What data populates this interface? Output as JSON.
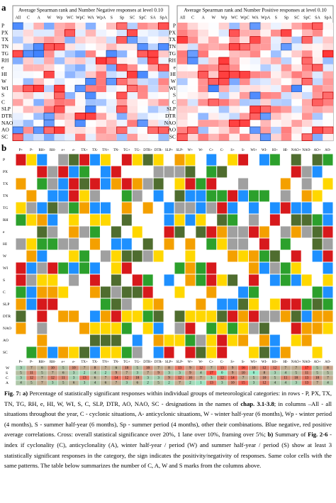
{
  "panel_a": {
    "letter": "a",
    "left_title": "Average Spearman rank and Number Negative responses at level 0.10",
    "right_title": "Average Spearman rank and Number Positive responses at level 0.10",
    "columns": [
      "All",
      "C",
      "A",
      "W",
      "Wp",
      "WC",
      "WpC",
      "WA",
      "WpA",
      "S",
      "Sp",
      "SC",
      "SpC",
      "SA",
      "SpA"
    ],
    "rows": [
      "P",
      "PX",
      "TX",
      "TN",
      "TG",
      "RH",
      "e",
      "HI",
      "W",
      "WI",
      "S",
      "C",
      "SLP",
      "DTR",
      "NAO",
      "AO",
      "SC"
    ]
  },
  "panel_b": {
    "letter": "b",
    "columns": [
      "P+",
      "P-",
      "RH+",
      "RH-",
      "e+",
      "e-",
      "TX+",
      "TX-",
      "TN+",
      "TN-",
      "TG+",
      "TG-",
      "DTR+",
      "DTR-",
      "SLP+",
      "SLP-",
      "W+",
      "W-",
      "C+",
      "C-",
      "S+",
      "S-",
      "WI+",
      "WI-",
      "HI+",
      "HI-",
      "NAO+",
      "NAO-",
      "AO+",
      "AO-"
    ],
    "rows": [
      "P",
      "PX",
      "TX",
      "TN",
      "TG",
      "RH",
      "e",
      "HI",
      "W",
      "WI",
      "S",
      "C",
      "SLP",
      "DTR",
      "NAO",
      "AO",
      "SC"
    ],
    "summary": [
      {
        "name": "W",
        "values": [
          3,
          7,
          6,
          10,
          5,
          10,
          7,
          8,
          7,
          6,
          10,
          5,
          10,
          7,
          8,
          13,
          9,
          12,
          7,
          13,
          9,
          16,
          10,
          12,
          12,
          7,
          7,
          17,
          5,
          8
        ]
      },
      {
        "name": "S",
        "values": [
          5,
          11,
          5,
          7,
          6,
          3,
          2,
          4,
          2,
          9,
          7,
          3,
          7,
          9,
          3,
          3,
          9,
          4,
          17,
          0,
          9,
          10,
          0,
          8,
          3,
          4,
          5,
          11,
          5,
          5
        ]
      },
      {
        "name": "C",
        "values": [
          3,
          12,
          7,
          12,
          11,
          3,
          13,
          6,
          7,
          14,
          12,
          10,
          3,
          3,
          9,
          12,
          10,
          7,
          3,
          12,
          14,
          7,
          5,
          10,
          5,
          11,
          10,
          13,
          10,
          7
        ]
      },
      {
        "name": "A",
        "values": [
          4,
          5,
          7,
          3,
          5,
          6,
          3,
          4,
          6,
          7,
          3,
          6,
          2,
          5,
          2,
          7,
          2,
          1,
          13,
          3,
          10,
          15,
          3,
          12,
          4,
          4,
          3,
          13,
          7,
          4
        ]
      }
    ]
  },
  "caption": [
    "Fig. 7: a)",
    " Percentage of statistically significant responses within individual groups of meteorological categories: in rows - P, PX, TX, TN, TG, RH, e, HI, W, WI, S, C, SLP, DTR, AO, NAO, SC - designations in the names of ",
    "chap. 3.1-3.8",
    "; in columns –All - all situations throughout the year, C - cyclonic situations, A- anticyclonic situations, W - winter half-year (6 months), Wp - winter period (4 months), S - summer half-year (6 months), Sp - summer period (4 months), other their combinations. Blue negative, red positive average correlations. Cross: overall statistical significance over 20%, 1 lane over 10%, framing over 5%; ",
    "b)",
    " Summary of ",
    "Fig. 2-6",
    " - index if cyclonality (C), anticyclonality (A), winter half-year / period (W) and summer half-year / period (S) show at least 3 statistically significant responses in the category, the sign indicates the positivity/negativity of responses. Same color cells with the same patterns. The table below summarizes the number of C, A, W and S marks from the columns above."
  ]
}
